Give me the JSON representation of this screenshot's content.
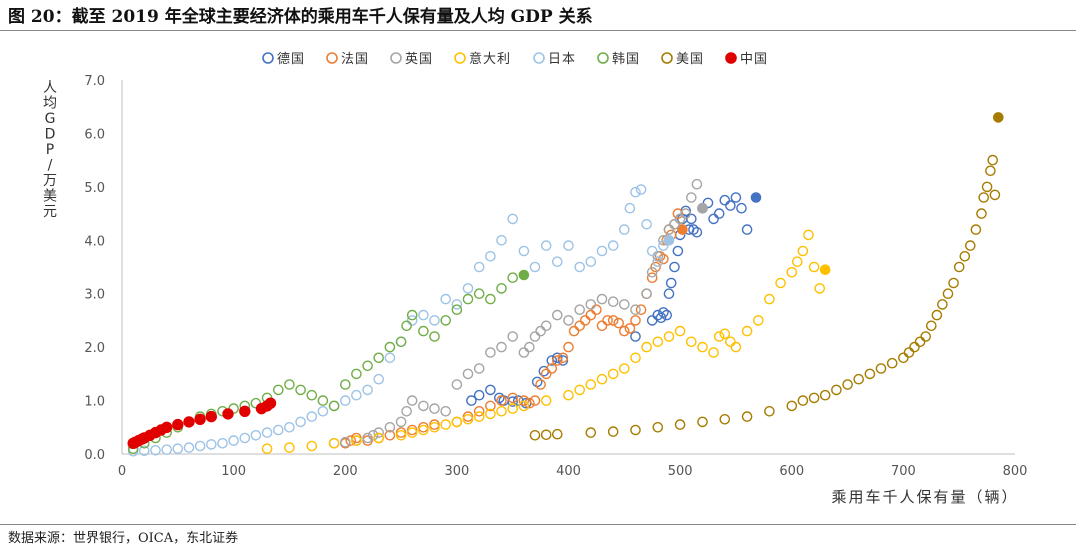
{
  "header": {
    "title": "图 20：截至 2019 年全球主要经济体的乘用车千人保有量及人均 GDP 关系"
  },
  "footer": {
    "source": "数据来源：世界银行，OICA，东北证券"
  },
  "chart_data": {
    "type": "scatter",
    "xlabel": "乘用车千人保有量（辆）",
    "ylabel": "人均GDP/万美元",
    "xlim": [
      0,
      800
    ],
    "ylim": [
      0,
      7
    ],
    "xticks": [
      "0",
      "100",
      "200",
      "300",
      "400",
      "500",
      "600",
      "700",
      "800"
    ],
    "yticks": [
      "0.0",
      "1.0",
      "2.0",
      "3.0",
      "4.0",
      "5.0",
      "6.0",
      "7.0"
    ],
    "grid": false,
    "legend": "top-center",
    "series": [
      {
        "name": "德国",
        "color": "#4472C4",
        "x": [
          313,
          320,
          330,
          338,
          342,
          350,
          355,
          362,
          372,
          378,
          385,
          390,
          395,
          460,
          475,
          480,
          483,
          485,
          488,
          490,
          492,
          495,
          498,
          500,
          502,
          505,
          508,
          510,
          512,
          515,
          520,
          525,
          530,
          535,
          540,
          545,
          550,
          555,
          560,
          568
        ],
        "y": [
          1.0,
          1.1,
          1.2,
          1.05,
          1.0,
          0.98,
          1.0,
          0.95,
          1.35,
          1.55,
          1.75,
          1.8,
          1.75,
          2.2,
          2.5,
          2.6,
          2.55,
          2.65,
          2.6,
          3.0,
          3.2,
          3.5,
          3.8,
          4.1,
          4.4,
          4.55,
          4.2,
          4.4,
          4.2,
          4.15,
          4.6,
          4.7,
          4.4,
          4.5,
          4.75,
          4.65,
          4.8,
          4.6,
          4.2,
          4.8
        ]
      },
      {
        "name": "法国",
        "color": "#ED7D31",
        "x": [
          200,
          205,
          210,
          220,
          230,
          240,
          250,
          260,
          270,
          280,
          300,
          310,
          320,
          330,
          340,
          350,
          360,
          365,
          370,
          375,
          380,
          385,
          390,
          395,
          400,
          405,
          410,
          415,
          420,
          425,
          430,
          435,
          440,
          445,
          450,
          455,
          460,
          465,
          470,
          475,
          478,
          480,
          482,
          485,
          488,
          490,
          492,
          495,
          498,
          500,
          502
        ],
        "y": [
          0.2,
          0.25,
          0.3,
          0.25,
          0.3,
          0.35,
          0.4,
          0.45,
          0.5,
          0.55,
          0.6,
          0.7,
          0.8,
          0.9,
          1.0,
          1.05,
          1.0,
          0.95,
          1.0,
          1.3,
          1.5,
          1.6,
          1.75,
          1.8,
          2.0,
          2.3,
          2.4,
          2.5,
          2.6,
          2.7,
          2.4,
          2.5,
          2.5,
          2.45,
          2.3,
          2.35,
          2.5,
          2.7,
          3.0,
          3.3,
          3.5,
          3.6,
          3.7,
          3.65,
          4.0,
          4.2,
          4.1,
          4.3,
          4.5,
          4.4,
          4.2
        ]
      },
      {
        "name": "英国",
        "color": "#A5A5A5",
        "x": [
          190,
          200,
          210,
          220,
          225,
          230,
          240,
          250,
          255,
          260,
          270,
          280,
          290,
          300,
          310,
          320,
          330,
          340,
          350,
          360,
          365,
          370,
          375,
          380,
          390,
          400,
          410,
          420,
          430,
          440,
          450,
          460,
          470,
          475,
          480,
          485,
          490,
          495,
          500,
          505,
          510,
          515,
          520
        ],
        "y": [
          0.2,
          0.22,
          0.25,
          0.3,
          0.35,
          0.4,
          0.5,
          0.6,
          0.8,
          1.0,
          0.9,
          0.85,
          0.8,
          1.3,
          1.5,
          1.6,
          1.9,
          2.0,
          2.2,
          1.9,
          2.0,
          2.2,
          2.3,
          2.4,
          2.6,
          2.5,
          2.7,
          2.8,
          2.9,
          2.85,
          2.8,
          2.7,
          3.0,
          3.4,
          3.7,
          4.0,
          4.2,
          4.3,
          4.4,
          4.5,
          4.8,
          5.05,
          4.6
        ]
      },
      {
        "name": "意大利",
        "color": "#FFC000",
        "x": [
          130,
          150,
          170,
          190,
          210,
          230,
          250,
          260,
          270,
          280,
          290,
          300,
          310,
          320,
          330,
          340,
          350,
          360,
          380,
          400,
          410,
          420,
          430,
          440,
          450,
          460,
          470,
          480,
          490,
          500,
          510,
          520,
          530,
          535,
          540,
          545,
          550,
          560,
          570,
          580,
          590,
          600,
          605,
          610,
          615,
          620,
          625,
          630
        ],
        "y": [
          0.1,
          0.12,
          0.15,
          0.2,
          0.25,
          0.3,
          0.35,
          0.4,
          0.45,
          0.5,
          0.55,
          0.6,
          0.65,
          0.7,
          0.75,
          0.8,
          0.85,
          0.9,
          1.0,
          1.1,
          1.2,
          1.3,
          1.4,
          1.5,
          1.6,
          1.8,
          2.0,
          2.1,
          2.2,
          2.3,
          2.1,
          2.0,
          1.9,
          2.2,
          2.25,
          2.1,
          2.0,
          2.3,
          2.5,
          2.9,
          3.2,
          3.4,
          3.6,
          3.8,
          4.1,
          3.5,
          3.1,
          3.45
        ]
      },
      {
        "name": "日本",
        "color": "#9DC3E6",
        "x": [
          10,
          20,
          30,
          40,
          50,
          60,
          70,
          80,
          90,
          100,
          110,
          120,
          130,
          140,
          150,
          160,
          170,
          180,
          190,
          200,
          210,
          220,
          230,
          240,
          250,
          260,
          270,
          280,
          290,
          300,
          310,
          320,
          330,
          340,
          350,
          360,
          370,
          380,
          390,
          400,
          410,
          420,
          430,
          440,
          450,
          455,
          460,
          465,
          470,
          475,
          480,
          485,
          490
        ],
        "y": [
          0.05,
          0.06,
          0.07,
          0.08,
          0.1,
          0.12,
          0.15,
          0.18,
          0.2,
          0.25,
          0.3,
          0.35,
          0.4,
          0.45,
          0.5,
          0.6,
          0.7,
          0.8,
          0.9,
          1.0,
          1.1,
          1.2,
          1.4,
          1.8,
          2.1,
          2.5,
          2.6,
          2.5,
          2.9,
          2.8,
          3.1,
          3.5,
          3.7,
          4.0,
          4.4,
          3.8,
          3.5,
          3.9,
          3.6,
          3.9,
          3.5,
          3.6,
          3.8,
          3.9,
          4.2,
          4.6,
          4.9,
          4.95,
          4.3,
          3.8,
          3.6,
          3.9,
          4.0
        ]
      },
      {
        "name": "韩国",
        "color": "#70AD47",
        "x": [
          10,
          20,
          30,
          40,
          50,
          60,
          70,
          80,
          90,
          100,
          110,
          120,
          130,
          140,
          150,
          160,
          170,
          180,
          190,
          200,
          210,
          220,
          230,
          240,
          250,
          255,
          260,
          270,
          280,
          290,
          300,
          310,
          320,
          330,
          340,
          350,
          360
        ],
        "y": [
          0.1,
          0.2,
          0.3,
          0.4,
          0.5,
          0.6,
          0.7,
          0.75,
          0.8,
          0.85,
          0.9,
          0.95,
          1.05,
          1.2,
          1.3,
          1.2,
          1.1,
          1.0,
          0.9,
          1.3,
          1.5,
          1.65,
          1.8,
          2.0,
          2.1,
          2.4,
          2.6,
          2.3,
          2.2,
          2.5,
          2.7,
          2.9,
          3.0,
          2.9,
          3.1,
          3.3,
          3.35
        ]
      },
      {
        "name": "美国",
        "color": "#A67C00",
        "x": [
          370,
          380,
          390,
          420,
          440,
          460,
          480,
          500,
          520,
          540,
          560,
          580,
          600,
          610,
          620,
          630,
          640,
          650,
          660,
          670,
          680,
          690,
          700,
          705,
          710,
          715,
          720,
          725,
          730,
          735,
          740,
          745,
          750,
          755,
          760,
          765,
          770,
          772,
          775,
          778,
          780,
          782,
          785
        ],
        "y": [
          0.35,
          0.36,
          0.37,
          0.4,
          0.42,
          0.45,
          0.5,
          0.55,
          0.6,
          0.65,
          0.7,
          0.8,
          0.9,
          1.0,
          1.05,
          1.1,
          1.2,
          1.3,
          1.4,
          1.5,
          1.6,
          1.7,
          1.8,
          1.9,
          2.0,
          2.1,
          2.2,
          2.4,
          2.6,
          2.8,
          3.0,
          3.2,
          3.5,
          3.7,
          3.9,
          4.2,
          4.5,
          4.8,
          5.0,
          5.3,
          5.5,
          4.85,
          6.3
        ]
      },
      {
        "name": "中国",
        "color": "#E00000",
        "filled": true,
        "x": [
          10,
          12,
          15,
          18,
          20,
          25,
          30,
          35,
          40,
          50,
          60,
          70,
          80,
          95,
          110,
          125,
          130,
          133
        ],
        "y": [
          0.2,
          0.22,
          0.25,
          0.28,
          0.3,
          0.35,
          0.4,
          0.45,
          0.5,
          0.55,
          0.6,
          0.65,
          0.7,
          0.75,
          0.8,
          0.85,
          0.9,
          0.95
        ]
      }
    ]
  }
}
